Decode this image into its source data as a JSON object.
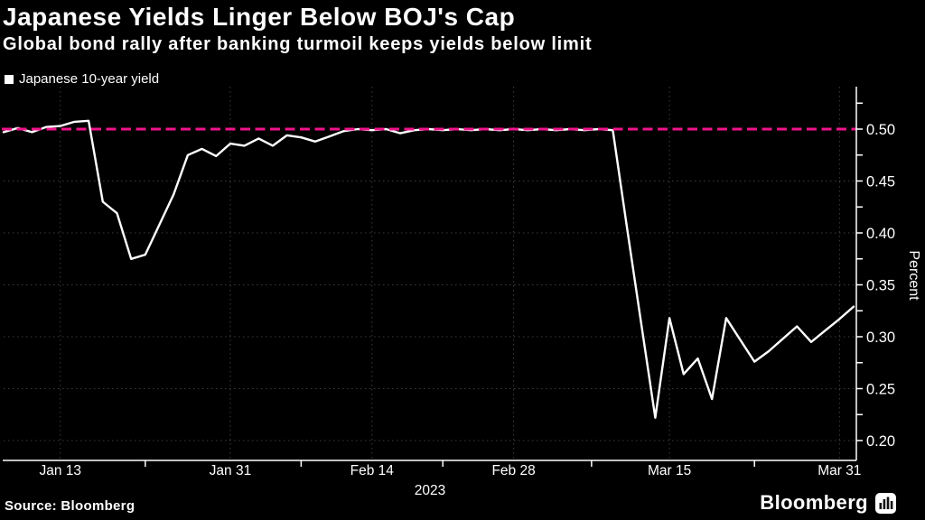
{
  "header": {
    "title": "Japanese Yields Linger Below BOJ's Cap",
    "subtitle": "Global bond rally after banking turmoil keeps yields below limit"
  },
  "legend": {
    "marker": "white-square",
    "label": "Japanese 10-year yield"
  },
  "chart_data": {
    "type": "line",
    "title": "Japanese Yields Linger Below BOJ's Cap",
    "subtitle": "Global bond rally after banking turmoil keeps yields below limit",
    "series": [
      {
        "name": "Japanese 10-year yield",
        "color": "#ffffff",
        "x": [
          "Jan 9",
          "Jan 10",
          "Jan 11",
          "Jan 12",
          "Jan 13",
          "Jan 16",
          "Jan 17",
          "Jan 18",
          "Jan 19",
          "Jan 20",
          "Jan 23",
          "Jan 24",
          "Jan 25",
          "Jan 26",
          "Jan 27",
          "Jan 30",
          "Jan 31",
          "Feb 1",
          "Feb 2",
          "Feb 3",
          "Feb 6",
          "Feb 7",
          "Feb 8",
          "Feb 9",
          "Feb 10",
          "Feb 13",
          "Feb 14",
          "Feb 15",
          "Feb 16",
          "Feb 17",
          "Feb 20",
          "Feb 21",
          "Feb 22",
          "Feb 23",
          "Feb 24",
          "Feb 27",
          "Feb 28",
          "Mar 1",
          "Mar 2",
          "Mar 3",
          "Mar 6",
          "Mar 7",
          "Mar 8",
          "Mar 9",
          "Mar 10",
          "Mar 13",
          "Mar 14",
          "Mar 15",
          "Mar 16",
          "Mar 17",
          "Mar 20",
          "Mar 21",
          "Mar 22",
          "Mar 23",
          "Mar 24",
          "Mar 27",
          "Mar 28",
          "Mar 29",
          "Mar 30",
          "Mar 31",
          "Apr 3"
        ],
        "values": [
          0.497,
          0.501,
          0.497,
          0.502,
          0.503,
          0.507,
          0.508,
          0.43,
          0.419,
          0.375,
          0.379,
          0.408,
          0.437,
          0.475,
          0.481,
          0.474,
          0.486,
          0.484,
          0.491,
          0.484,
          0.494,
          0.492,
          0.488,
          0.493,
          0.498,
          0.5,
          0.499,
          0.5,
          0.496,
          0.499,
          0.5,
          0.499,
          0.5,
          0.499,
          0.5,
          0.499,
          0.5,
          0.499,
          0.5,
          0.499,
          0.5,
          0.499,
          0.5,
          0.499,
          0.405,
          0.313,
          0.222,
          0.318,
          0.264,
          0.279,
          0.24,
          0.318,
          0.297,
          0.276,
          0.286,
          0.298,
          0.31,
          0.295,
          0.306,
          0.317,
          0.329
        ]
      }
    ],
    "x_axis": {
      "tick_labels": [
        "Jan 13",
        "Jan 31",
        "Feb 14",
        "Feb 28",
        "Mar 15",
        "Mar 31"
      ],
      "tick_indices": [
        4,
        16,
        26,
        36,
        47,
        59
      ],
      "year_label": "2023"
    },
    "y_axis": {
      "label": "Percent",
      "side": "right",
      "ticks": [
        0.5,
        0.45,
        0.4,
        0.35,
        0.3,
        0.25,
        0.2
      ],
      "tick_labels": [
        "0.50",
        "0.45",
        "0.40",
        "0.35",
        "0.30",
        "0.25",
        "0.20"
      ],
      "minor_tick_step": 0.025,
      "range": [
        0.181,
        0.537
      ]
    },
    "reference_line": {
      "name": "BOJ cap",
      "value": 0.5,
      "color": "#f0148c",
      "style": "dashed"
    },
    "colors": {
      "background": "#000000",
      "grid": "#3d3d3d",
      "axis": "#ffffff",
      "text": "#ffffff"
    },
    "grid": true,
    "legend_position": "top-left"
  },
  "footer": {
    "source": "Source: Bloomberg",
    "brand": "Bloomberg"
  }
}
